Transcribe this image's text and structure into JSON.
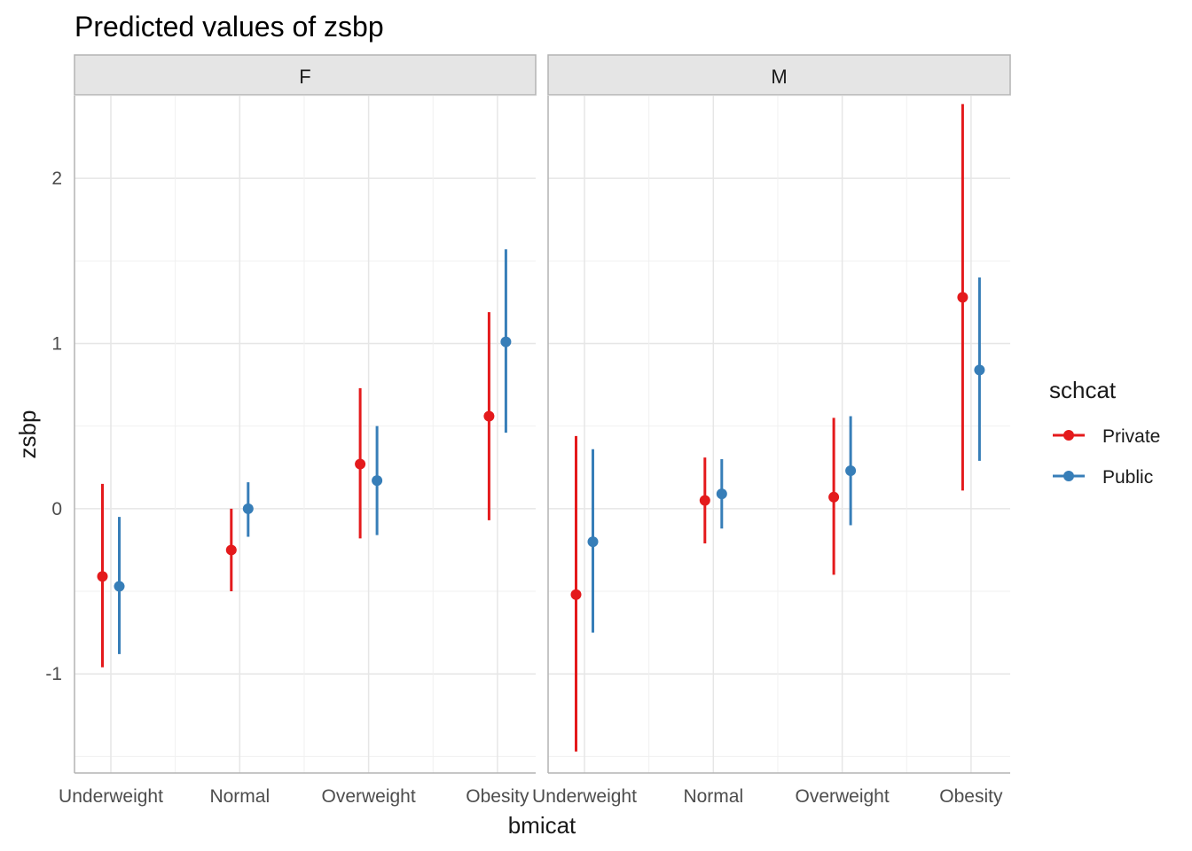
{
  "chart_data": {
    "type": "scatter",
    "subtype": "pointrange-facet",
    "title": "Predicted values of zsbp",
    "xlabel": "bmicat",
    "ylabel": "zsbp",
    "categories": [
      "Underweight",
      "Normal",
      "Overweight",
      "Obesity"
    ],
    "ylim": [
      -1.6,
      2.5
    ],
    "yticks": [
      -1,
      0,
      1,
      2
    ],
    "grid": true,
    "legend": {
      "title": "schcat",
      "placement": "right"
    },
    "series_styles": [
      {
        "name": "Private",
        "color": "#e41a1c"
      },
      {
        "name": "Public",
        "color": "#377eb8"
      }
    ],
    "facets": [
      {
        "label": "F",
        "series": [
          {
            "name": "Private",
            "values": [
              -0.41,
              -0.25,
              0.27,
              0.56
            ],
            "lower": [
              -0.96,
              -0.5,
              -0.18,
              -0.07
            ],
            "upper": [
              0.15,
              0.0,
              0.73,
              1.19
            ]
          },
          {
            "name": "Public",
            "values": [
              -0.47,
              0.0,
              0.17,
              1.01
            ],
            "lower": [
              -0.88,
              -0.17,
              -0.16,
              0.46
            ],
            "upper": [
              -0.05,
              0.16,
              0.5,
              1.57
            ]
          }
        ]
      },
      {
        "label": "M",
        "series": [
          {
            "name": "Private",
            "values": [
              -0.52,
              0.05,
              0.07,
              1.28
            ],
            "lower": [
              -1.47,
              -0.21,
              -0.4,
              0.11
            ],
            "upper": [
              0.44,
              0.31,
              0.55,
              2.45
            ]
          },
          {
            "name": "Public",
            "values": [
              -0.2,
              0.09,
              0.23,
              0.84
            ],
            "lower": [
              -0.75,
              -0.12,
              -0.1,
              0.29
            ],
            "upper": [
              0.36,
              0.3,
              0.56,
              1.4
            ]
          }
        ]
      }
    ]
  }
}
